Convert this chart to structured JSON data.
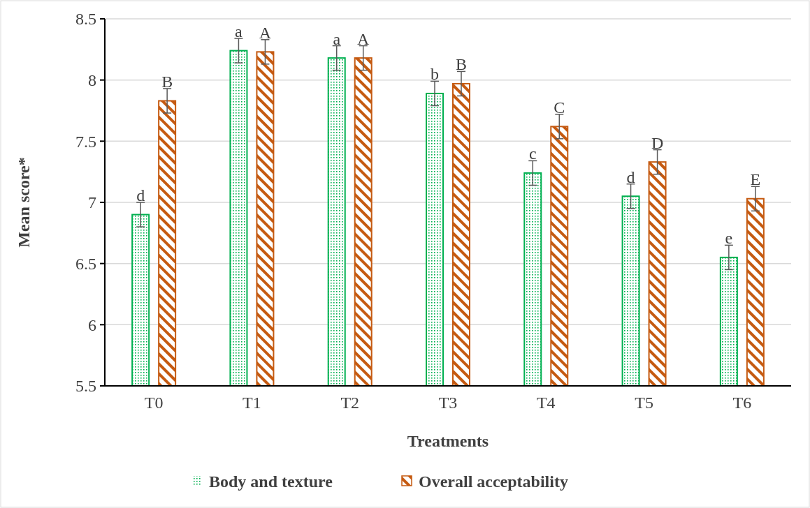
{
  "chart_data": {
    "type": "bar",
    "xlabel": "Treatments",
    "ylabel": "Mean score*",
    "categories": [
      "T0",
      "T1",
      "T2",
      "T3",
      "T4",
      "T5",
      "T6"
    ],
    "series": [
      {
        "name": "Body and texture",
        "color": "#00b050",
        "values": [
          6.9,
          8.24,
          8.18,
          7.89,
          7.24,
          7.05,
          6.55
        ],
        "errors": [
          0.1,
          0.1,
          0.1,
          0.1,
          0.1,
          0.1,
          0.1
        ]
      },
      {
        "name": "Overall acceptability",
        "color": "#c55a11",
        "values": [
          7.83,
          8.23,
          8.18,
          7.97,
          7.62,
          7.33,
          7.03
        ],
        "errors": [
          0.1,
          0.1,
          0.1,
          0.1,
          0.1,
          0.1,
          0.1
        ]
      }
    ],
    "annotations": [
      "d",
      "B",
      "a",
      "A",
      "a",
      "A",
      "b",
      "B",
      "c",
      "C",
      "d",
      "D",
      "e",
      "E"
    ],
    "ylim": [
      5.5,
      8.5
    ],
    "yticks": [
      5.5,
      6,
      6.5,
      7,
      7.5,
      8,
      8.5
    ],
    "grid": "y",
    "legend": "bottom"
  }
}
